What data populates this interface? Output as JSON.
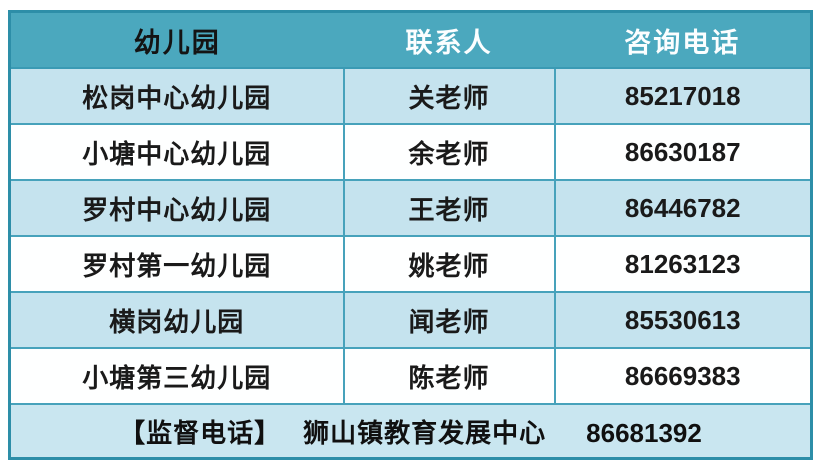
{
  "colors": {
    "header_bg": "#4ba8be",
    "row_alt_bg": "#c5e3ee",
    "row_bg": "#feffff",
    "footer_bg": "#c9e6f0",
    "inner_border": "#47a2bb",
    "outer_border": "#2d8ea8",
    "header_text_col1": "#141414",
    "header_text_col23": "#fbfeff",
    "cell_text": "#1a1a1a"
  },
  "table": {
    "columns": [
      {
        "key": "kindergarten",
        "label": "幼儿园"
      },
      {
        "key": "contact",
        "label": "联系人"
      },
      {
        "key": "phone",
        "label": "咨询电话"
      }
    ],
    "rows": [
      {
        "kindergarten": "松岗中心幼儿园",
        "contact": "关老师",
        "phone": "85217018"
      },
      {
        "kindergarten": "小塘中心幼儿园",
        "contact": "余老师",
        "phone": "86630187"
      },
      {
        "kindergarten": "罗村中心幼儿园",
        "contact": "王老师",
        "phone": "86446782"
      },
      {
        "kindergarten": "罗村第一幼儿园",
        "contact": "姚老师",
        "phone": "81263123"
      },
      {
        "kindergarten": "横岗幼儿园",
        "contact": "闻老师",
        "phone": "85530613"
      },
      {
        "kindergarten": "小塘第三幼儿园",
        "contact": "陈老师",
        "phone": "86669383"
      }
    ],
    "footer": {
      "label": "【监督电话】",
      "org": "狮山镇教育发展中心",
      "phone": "86681392"
    }
  }
}
